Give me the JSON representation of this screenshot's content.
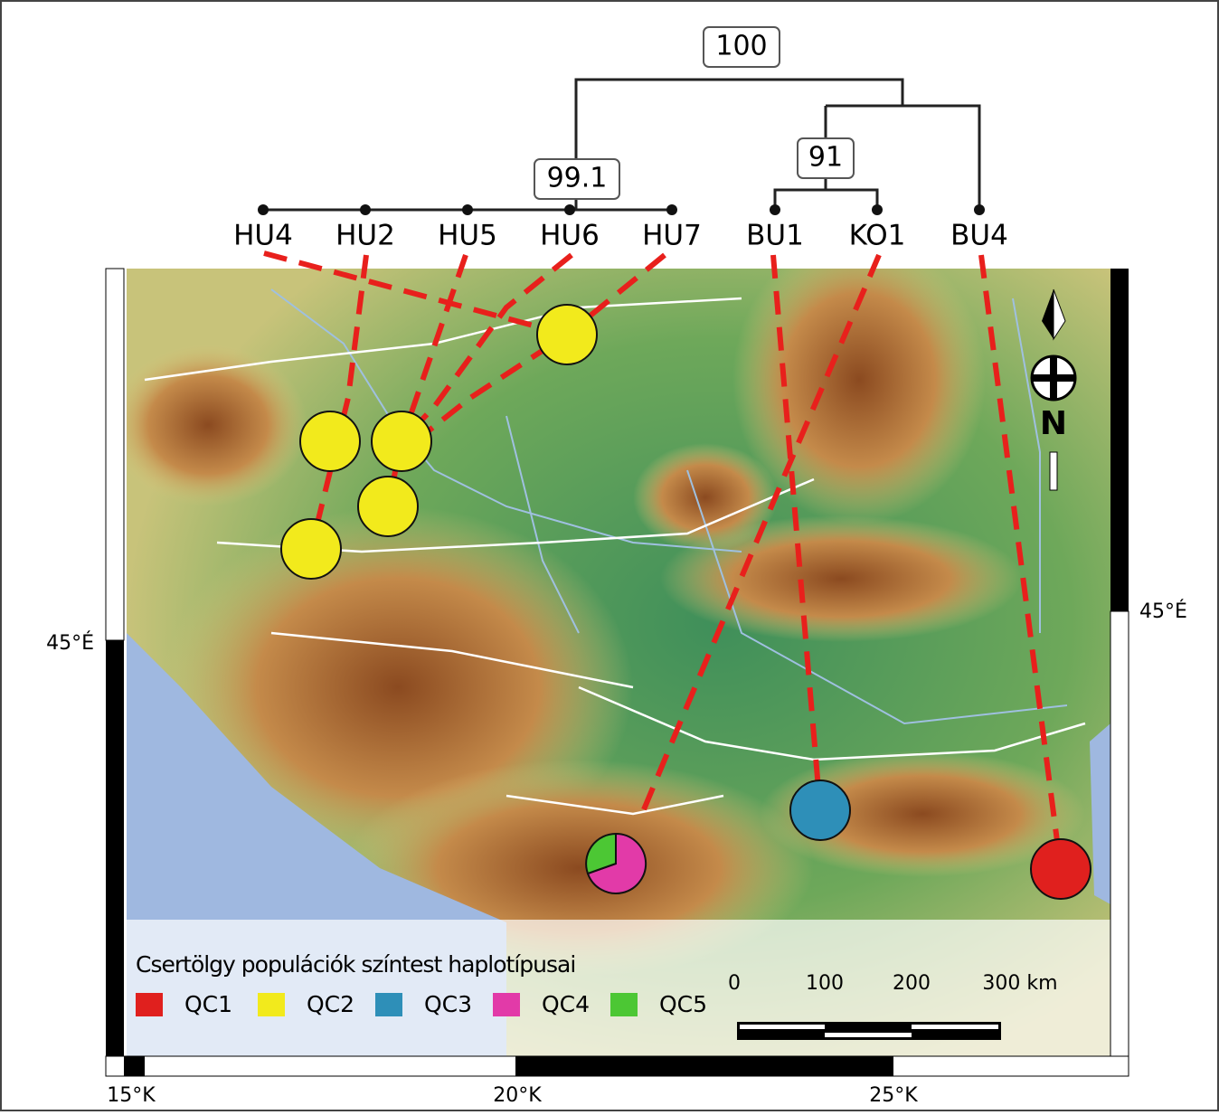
{
  "tree": {
    "leaves": [
      "HU4",
      "HU2",
      "HU5",
      "HU6",
      "HU7",
      "BU1",
      "KO1",
      "BU4"
    ],
    "support": [
      100,
      99.1,
      91
    ]
  },
  "legend": {
    "title": "Csertölgy populációk színtest haplotípusai",
    "items": [
      {
        "label": "QC1",
        "color": "#e0201e"
      },
      {
        "label": "QC2",
        "color": "#f2ea1c"
      },
      {
        "label": "QC3",
        "color": "#2e8fb8"
      },
      {
        "label": "QC4",
        "color": "#e23aa8"
      },
      {
        "label": "QC5",
        "color": "#4cc734"
      }
    ]
  },
  "scale_bar": {
    "labels": [
      "0",
      "100",
      "200",
      "300 km"
    ]
  },
  "axes": {
    "longitude": [
      "15°K",
      "20°K",
      "25°K"
    ],
    "latitude_left": "45°É",
    "latitude_right": "45°É"
  }
}
